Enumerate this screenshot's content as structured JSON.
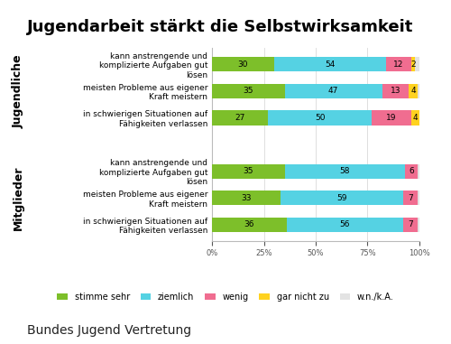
{
  "chart_data": {
    "type": "bar",
    "orientation": "horizontal",
    "stacked": true,
    "title": "Jugendarbeit stärkt die Selbstwirksamkeit",
    "groups": [
      {
        "name": "Jugendliche",
        "categories": [
          "kann anstrengende und komplizierte Aufgaben gut lösen",
          "meisten Probleme aus eigener Kraft meistern",
          "in schwierigen Situationen auf Fähigkeiten verlassen"
        ]
      },
      {
        "name": "Mitglieder",
        "categories": [
          "kann anstrengende und komplizierte Aufgaben gut lösen",
          "meisten Probleme aus eigener Kraft meistern",
          "in schwierigen Situationen auf Fähigkeiten verlassen"
        ]
      }
    ],
    "series": [
      {
        "name": "stimme sehr",
        "color": "#7dbf2a",
        "values": [
          30,
          35,
          27,
          35,
          33,
          36
        ]
      },
      {
        "name": "ziemlich",
        "color": "#55d2e3",
        "values": [
          54,
          47,
          50,
          58,
          59,
          56
        ]
      },
      {
        "name": "wenig",
        "color": "#f06d90",
        "values": [
          12,
          13,
          19,
          6,
          7,
          7
        ]
      },
      {
        "name": "gar nicht zu",
        "color": "#ffd21f",
        "values": [
          2,
          4,
          4,
          0,
          0,
          0
        ],
        "value_labels": [
          "2",
          "4",
          "4",
          null,
          null,
          null
        ]
      },
      {
        "name": "w.n./k.A.",
        "color": "#e3e3e3",
        "values": [
          2,
          1,
          0,
          1,
          1,
          1
        ],
        "value_labels": [
          null,
          null,
          null,
          null,
          null,
          null
        ]
      }
    ],
    "xlim": [
      0,
      100
    ],
    "xticks": [
      {
        "value": 0,
        "label": "0%"
      },
      {
        "value": 25,
        "label": "25%"
      },
      {
        "value": 50,
        "label": "50%"
      },
      {
        "value": 75,
        "label": "75%"
      },
      {
        "value": 100,
        "label": "100%"
      }
    ],
    "grid": true,
    "data_labels": true,
    "legend": "lower center",
    "footer": "Bundes Jugend Vertretung"
  }
}
